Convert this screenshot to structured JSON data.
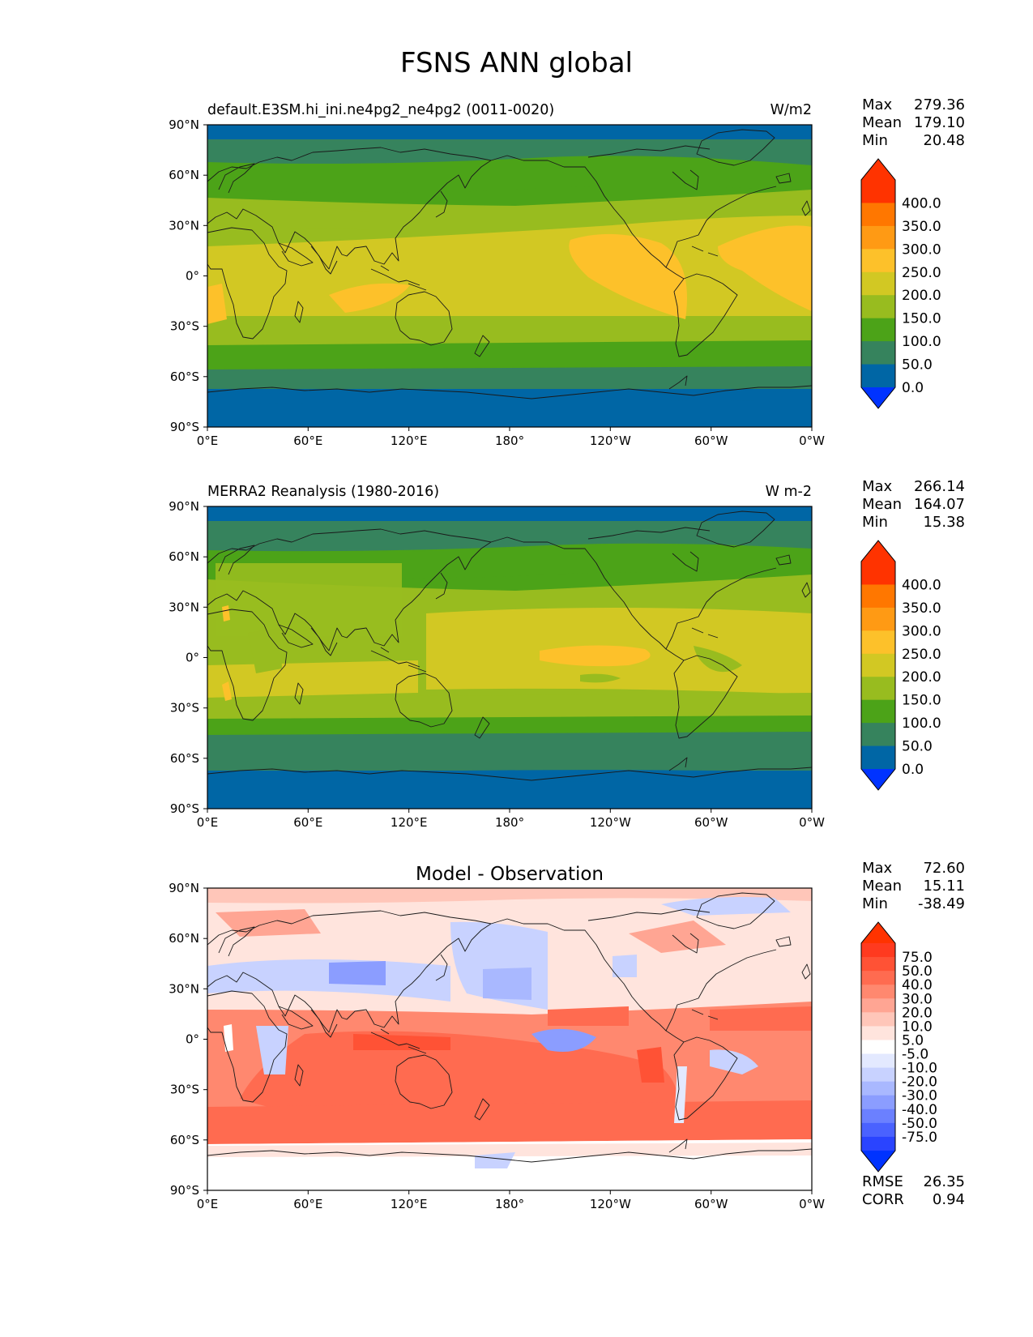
{
  "title": "FSNS ANN global",
  "lat_ticks": [
    "90°N",
    "60°N",
    "30°N",
    "0°",
    "30°S",
    "60°S",
    "90°S"
  ],
  "lon_ticks": [
    "0°E",
    "60°E",
    "120°E",
    "180°",
    "120°W",
    "60°W",
    "0°W"
  ],
  "panels": [
    {
      "id": "test",
      "left_title": "default.E3SM.hi_ini.ne4pg2_ne4pg2 (0011-0020)",
      "center_title": "",
      "units": "W/m2",
      "stats": [
        {
          "label": "Max",
          "value": "279.36"
        },
        {
          "label": "Mean",
          "value": "179.10"
        },
        {
          "label": "Min",
          "value": "20.48"
        }
      ],
      "colorbar_labels": [
        "400.0",
        "350.0",
        "300.0",
        "250.0",
        "200.0",
        "150.0",
        "100.0",
        "50.0",
        "0.0"
      ],
      "colorbar_colors": [
        "#ff3300",
        "#ff7700",
        "#ff9a14",
        "#fdc12a",
        "#d2c823",
        "#98bc1f",
        "#4ca318",
        "#36835d",
        "#0066a5"
      ],
      "under_color": "#0033ff",
      "over_color": "#ff3300",
      "footer_stats": []
    },
    {
      "id": "reference",
      "left_title": "MERRA2 Reanalysis (1980-2016)",
      "center_title": "",
      "units": "W m-2",
      "stats": [
        {
          "label": "Max",
          "value": "266.14"
        },
        {
          "label": "Mean",
          "value": "164.07"
        },
        {
          "label": "Min",
          "value": "15.38"
        }
      ],
      "colorbar_labels": [
        "400.0",
        "350.0",
        "300.0",
        "250.0",
        "200.0",
        "150.0",
        "100.0",
        "50.0",
        "0.0"
      ],
      "colorbar_colors": [
        "#ff3300",
        "#ff7700",
        "#ff9a14",
        "#fdc12a",
        "#d2c823",
        "#98bc1f",
        "#4ca318",
        "#36835d",
        "#0066a5"
      ],
      "under_color": "#0033ff",
      "over_color": "#ff3300",
      "footer_stats": []
    },
    {
      "id": "diff",
      "left_title": "",
      "center_title": "Model - Observation",
      "units": "",
      "stats": [
        {
          "label": "Max",
          "value": "72.60"
        },
        {
          "label": "Mean",
          "value": "15.11"
        },
        {
          "label": "Min",
          "value": "-38.49"
        }
      ],
      "colorbar_labels": [
        "75.0",
        "50.0",
        "40.0",
        "30.0",
        "20.0",
        "10.0",
        "5.0",
        "-5.0",
        "-10.0",
        "-20.0",
        "-30.0",
        "-40.0",
        "-50.0",
        "-75.0"
      ],
      "colorbar_colors": [
        "#ff3a1f",
        "#ff5235",
        "#ff6b50",
        "#ff886f",
        "#ffa593",
        "#ffc6b9",
        "#ffe4dd",
        "#ffffff",
        "#e3e9ff",
        "#c8d2ff",
        "#a9b8ff",
        "#8b9dff",
        "#6b80ff",
        "#4a62ff",
        "#2a44ff"
      ],
      "under_color": "#0033ff",
      "over_color": "#ff3300",
      "footer_stats": [
        {
          "label": "RMSE",
          "value": "26.35"
        },
        {
          "label": "CORR",
          "value": "0.94"
        }
      ]
    }
  ]
}
